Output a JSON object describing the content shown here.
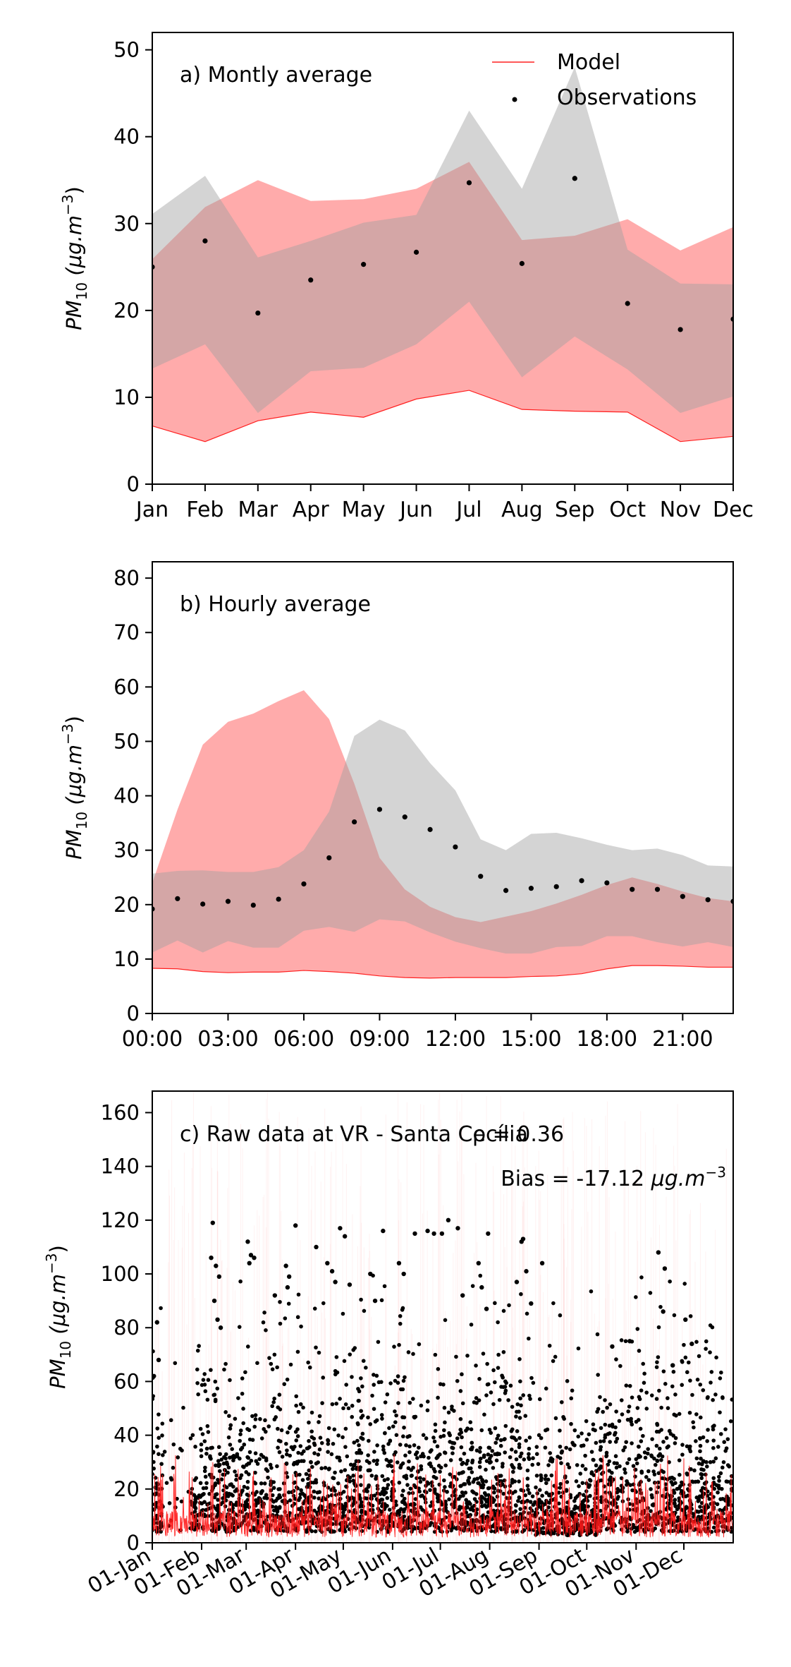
{
  "chart_data": [
    {
      "type": "area",
      "annotation": "a) Montly average",
      "ylabel_main": "PM",
      "ylabel_sub": "10",
      "ylabel_unit": "(μg.m",
      "ylabel_exp": "−3",
      "ylabel_close": ")",
      "ylim": [
        0,
        52
      ],
      "yticks": [
        "0",
        "10",
        "20",
        "30",
        "40",
        "50"
      ],
      "categories": [
        "Jan",
        "Feb",
        "Mar",
        "Apr",
        "May",
        "Jun",
        "Jul",
        "Aug",
        "Sep",
        "Oct",
        "Nov",
        "Dec"
      ],
      "legend": {
        "position": "top-right",
        "model_label": "Model",
        "obs_label": "Observations"
      },
      "colors": {
        "model_fill": "#ffa0a0",
        "model_line": "#ff2020",
        "obs_fill": "#c8c8c8",
        "overlap": "#d4a8a8",
        "points": "#000000"
      },
      "series": [
        {
          "name": "Model",
          "low": [
            6.7,
            4.9,
            7.3,
            8.3,
            7.7,
            9.8,
            10.8,
            8.6,
            8.4,
            8.3,
            4.9,
            5.5
          ],
          "q1": [
            13.3,
            16.1,
            8.2,
            13.0,
            13.4,
            16.1,
            21.0,
            12.3,
            17.0,
            13.2,
            8.2,
            10.1
          ],
          "high": [
            25.9,
            31.9,
            35.0,
            32.6,
            32.8,
            34.0,
            37.1,
            28.1,
            28.6,
            30.5,
            26.9,
            29.6
          ]
        },
        {
          "name": "Observations",
          "points": [
            25.0,
            28.0,
            19.7,
            23.5,
            25.3,
            26.7,
            34.7,
            25.4,
            35.2,
            20.8,
            17.8,
            19.0
          ],
          "low": [
            13.3,
            16.1,
            8.2,
            13.0,
            13.4,
            16.1,
            21.0,
            12.3,
            17.0,
            13.2,
            8.2,
            10.1
          ],
          "high": [
            31.1,
            35.5,
            26.1,
            28.0,
            30.1,
            31.0,
            43.0,
            34.0,
            48.0,
            27.0,
            23.1,
            23.0
          ]
        }
      ]
    },
    {
      "type": "area",
      "annotation": "b) Hourly average",
      "ylim": [
        0,
        83
      ],
      "yticks": [
        "0",
        "10",
        "20",
        "30",
        "40",
        "50",
        "60",
        "70",
        "80"
      ],
      "xticks": [
        "00:00",
        "03:00",
        "06:00",
        "09:00",
        "12:00",
        "15:00",
        "18:00",
        "21:00"
      ],
      "x": [
        0,
        1,
        2,
        3,
        4,
        5,
        6,
        7,
        8,
        9,
        10,
        11,
        12,
        13,
        14,
        15,
        16,
        17,
        18,
        19,
        20,
        21,
        22,
        23
      ],
      "series": [
        {
          "name": "Model",
          "low": [
            8.3,
            8.2,
            7.7,
            7.5,
            7.6,
            7.6,
            7.9,
            7.7,
            7.4,
            6.9,
            6.6,
            6.5,
            6.6,
            6.6,
            6.6,
            6.8,
            6.9,
            7.3,
            8.2,
            8.8,
            8.8,
            8.7,
            8.5,
            8.5
          ],
          "high": [
            24.0,
            37.5,
            49.4,
            53.6,
            55.1,
            57.4,
            59.4,
            54.1,
            42.2,
            28.6,
            22.8,
            19.6,
            17.7,
            16.8,
            17.8,
            18.8,
            20.2,
            21.8,
            23.6,
            25.0,
            23.8,
            22.4,
            21.2,
            20.6
          ]
        },
        {
          "name": "Observations",
          "points": [
            19.2,
            21.1,
            20.1,
            20.6,
            19.9,
            21.0,
            23.8,
            28.6,
            35.2,
            37.5,
            36.1,
            33.8,
            30.6,
            25.2,
            22.6,
            23.0,
            23.3,
            24.4,
            24.0,
            22.8,
            22.8,
            21.5,
            20.9,
            20.6
          ],
          "low": [
            11.2,
            13.4,
            11.2,
            13.3,
            12.1,
            12.1,
            15.2,
            15.9,
            15.0,
            17.3,
            16.9,
            14.9,
            13.2,
            12.0,
            11.0,
            11.0,
            12.2,
            12.4,
            14.2,
            14.2,
            13.1,
            12.3,
            13.1,
            12.2
          ],
          "high": [
            25.7,
            26.2,
            26.3,
            26.0,
            26.0,
            26.9,
            30.0,
            37.1,
            51.0,
            54.0,
            52.0,
            46.0,
            41.0,
            32.0,
            30.0,
            33.0,
            33.2,
            32.2,
            31.0,
            30.0,
            30.3,
            29.1,
            27.2,
            27.0
          ]
        }
      ]
    },
    {
      "type": "scatter",
      "annotation": "c) Raw data at VR - Santa Cecília",
      "rho_label": "ρ = 0.36",
      "bias_label": "Bias = -17.12",
      "bias_unit": "μg.m",
      "bias_exp": "−3",
      "ylim": [
        0,
        168
      ],
      "yticks": [
        "0",
        "20",
        "40",
        "60",
        "80",
        "100",
        "120",
        "140",
        "160"
      ],
      "xticks": [
        "01-Jan",
        "01-Feb",
        "01-Mar",
        "01-Apr",
        "01-May",
        "01-Jun",
        "01-Jul",
        "01-Aug",
        "01-Sep",
        "01-Oct",
        "01-Nov",
        "01-Dec"
      ],
      "xlim_days": [
        0,
        365
      ],
      "series": [
        {
          "name": "Model",
          "typical_range": [
            0,
            35
          ]
        },
        {
          "name": "Observations",
          "typical_range": [
            0,
            120
          ],
          "high_points": [
            [
              1,
              62
            ],
            [
              3,
              82
            ],
            [
              4,
              68
            ],
            [
              38,
              119
            ],
            [
              37,
              106
            ],
            [
              40,
              103
            ],
            [
              42,
              99
            ],
            [
              41,
              83
            ],
            [
              39,
              90
            ],
            [
              43,
              80
            ],
            [
              60,
              112
            ],
            [
              62,
              107
            ],
            [
              61,
              104
            ],
            [
              64,
              106
            ],
            [
              77,
              92
            ],
            [
              84,
              103
            ],
            [
              86,
              99
            ],
            [
              85,
              95
            ],
            [
              90,
              118
            ],
            [
              103,
              110
            ],
            [
              110,
              104
            ],
            [
              113,
              101
            ],
            [
              115,
              97
            ],
            [
              118,
              117
            ],
            [
              121,
              114
            ],
            [
              124,
              96
            ],
            [
              137,
              100
            ],
            [
              140,
              90
            ],
            [
              145,
              116
            ],
            [
              155,
              104
            ],
            [
              158,
              100
            ],
            [
              165,
              115
            ],
            [
              173,
              116
            ],
            [
              177,
              115
            ],
            [
              182,
              115
            ],
            [
              186,
              120
            ],
            [
              192,
              117
            ],
            [
              195,
              92
            ],
            [
              205,
              104
            ],
            [
              211,
              115
            ],
            [
              207,
              95
            ],
            [
              210,
              87
            ],
            [
              232,
              112
            ],
            [
              229,
              97
            ],
            [
              235,
              101
            ],
            [
              233,
              113
            ],
            [
              238,
              89
            ],
            [
              245,
              104
            ],
            [
              289,
              73
            ],
            [
              300,
              75
            ],
            [
              318,
              108
            ],
            [
              322,
              102
            ],
            [
              321,
              86
            ],
            [
              335,
              83
            ],
            [
              339,
              74
            ],
            [
              327,
              66
            ]
          ]
        }
      ]
    }
  ]
}
